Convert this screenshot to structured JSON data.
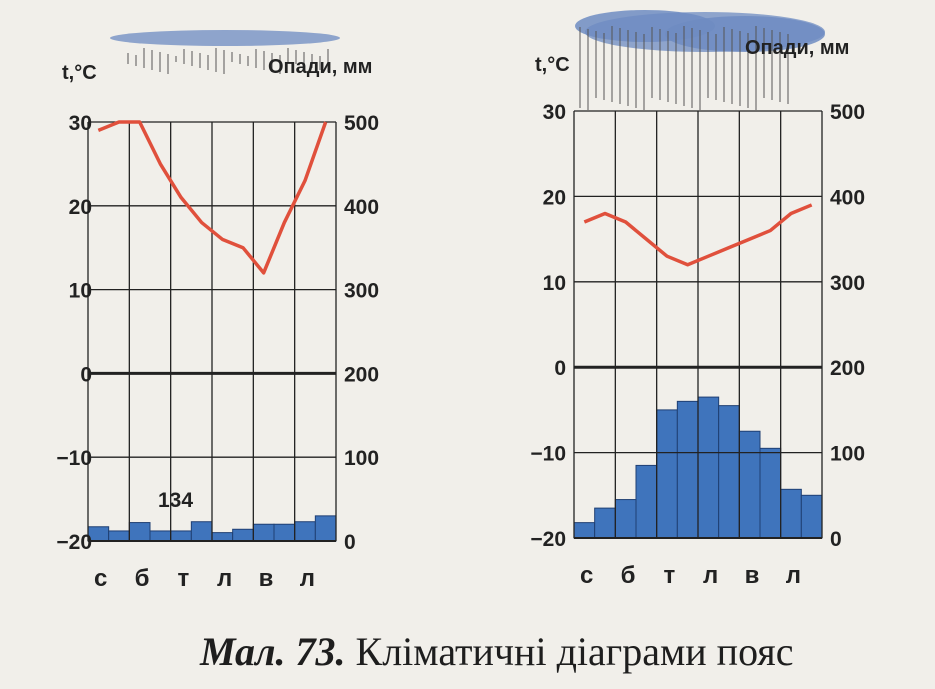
{
  "chart_data": [
    {
      "type": "line+bar",
      "title": "",
      "temp_label": "t,°C",
      "precip_label": "Опади, мм",
      "temp_ticks": [
        "30",
        "20",
        "10",
        "0",
        "−10",
        "−20"
      ],
      "precip_ticks": [
        "500",
        "400",
        "300",
        "200",
        "100",
        "0"
      ],
      "ylim_temp": [
        -20,
        30
      ],
      "ylim_precip": [
        0,
        500
      ],
      "month_labels": [
        "с",
        "б",
        "т",
        "л",
        "в",
        "л"
      ],
      "annotation": "134",
      "temperature": [
        29,
        30,
        30,
        25,
        21,
        18,
        16,
        15,
        12,
        18,
        23,
        30
      ],
      "precipitation": [
        17,
        12,
        22,
        12,
        12,
        23,
        10,
        14,
        20,
        20,
        23,
        30
      ],
      "line_color": "#e0503c",
      "bar_color": "#3f74bc",
      "cloud": "light"
    },
    {
      "type": "line+bar",
      "title": "",
      "temp_label": "t,°C",
      "precip_label": "Опади, мм",
      "temp_ticks": [
        "30",
        "20",
        "10",
        "0",
        "−10",
        "−20"
      ],
      "precip_ticks": [
        "500",
        "400",
        "300",
        "200",
        "100",
        "0"
      ],
      "ylim_temp": [
        -20,
        30
      ],
      "ylim_precip": [
        0,
        500
      ],
      "month_labels": [
        "с",
        "б",
        "т",
        "л",
        "в",
        "л"
      ],
      "annotation": "",
      "temperature": [
        17,
        18,
        17,
        15,
        13,
        12,
        13,
        14,
        15,
        16,
        18,
        19
      ],
      "precipitation": [
        18,
        35,
        45,
        85,
        150,
        160,
        165,
        155,
        125,
        105,
        57,
        50
      ],
      "line_color": "#e0503c",
      "bar_color": "#3f74bc",
      "cloud": "heavy"
    }
  ],
  "caption": {
    "figure": "Мал. 73.",
    "text": "Кліматичні діаграми пояс"
  }
}
